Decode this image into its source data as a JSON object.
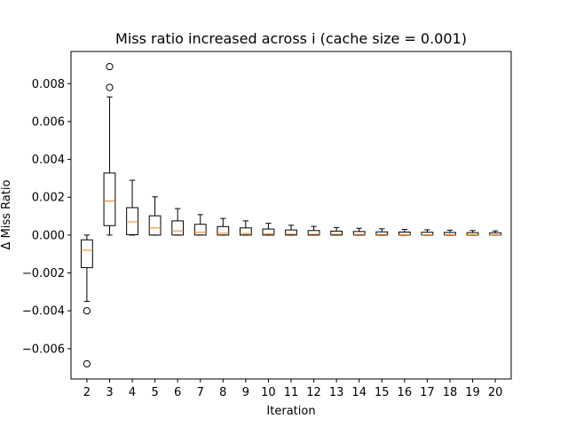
{
  "chart_data": {
    "type": "box",
    "title": "Miss ratio increased across i (cache size = 0.001)",
    "xlabel": "Iteration",
    "ylabel": "Δ Miss Ratio",
    "ylim": [
      -0.0076,
      0.0097
    ],
    "yticks": [
      -0.006,
      -0.004,
      -0.002,
      0.0,
      0.002,
      0.004,
      0.006,
      0.008
    ],
    "ytick_labels": [
      "−0.006",
      "−0.004",
      "−0.002",
      "0.000",
      "0.002",
      "0.004",
      "0.006",
      "0.008"
    ],
    "grid": false,
    "colors": {
      "box": "#000000",
      "median": "#ff7f0e",
      "outlier": "#000000"
    },
    "boxes": [
      {
        "label": "2",
        "whislo": -0.0035,
        "q1": -0.00172,
        "med": -0.0008,
        "q3": -0.00025,
        "whishi": 0.0,
        "fliers": [
          -0.004,
          -0.0068
        ]
      },
      {
        "label": "3",
        "whislo": 0.0,
        "q1": 0.0005,
        "med": 0.0018,
        "q3": 0.00328,
        "whishi": 0.0073,
        "fliers": [
          0.0078,
          0.0089
        ]
      },
      {
        "label": "4",
        "whislo": 0.0,
        "q1": 2e-05,
        "med": 0.0007,
        "q3": 0.00145,
        "whishi": 0.0029,
        "fliers": []
      },
      {
        "label": "5",
        "whislo": 0.0,
        "q1": 0.0,
        "med": 0.00038,
        "q3": 0.00102,
        "whishi": 0.00202,
        "fliers": []
      },
      {
        "label": "6",
        "whislo": 0.0,
        "q1": 0.0,
        "med": 0.00022,
        "q3": 0.00075,
        "whishi": 0.0014,
        "fliers": []
      },
      {
        "label": "7",
        "whislo": 0.0,
        "q1": 0.0,
        "med": 0.00015,
        "q3": 0.00057,
        "whishi": 0.00108,
        "fliers": []
      },
      {
        "label": "8",
        "whislo": 0.0,
        "q1": 0.0,
        "med": 0.0001,
        "q3": 0.00045,
        "whishi": 0.00088,
        "fliers": []
      },
      {
        "label": "9",
        "whislo": 0.0,
        "q1": 0.0,
        "med": 8e-05,
        "q3": 0.00038,
        "whishi": 0.00075,
        "fliers": []
      },
      {
        "label": "10",
        "whislo": 0.0,
        "q1": 0.0,
        "med": 6e-05,
        "q3": 0.00032,
        "whishi": 0.00062,
        "fliers": []
      },
      {
        "label": "11",
        "whislo": 0.0,
        "q1": 0.0,
        "med": 5e-05,
        "q3": 0.00027,
        "whishi": 0.00052,
        "fliers": []
      },
      {
        "label": "12",
        "whislo": 0.0,
        "q1": 0.0,
        "med": 4e-05,
        "q3": 0.00024,
        "whishi": 0.00046,
        "fliers": []
      },
      {
        "label": "13",
        "whislo": 0.0,
        "q1": 0.0,
        "med": 4e-05,
        "q3": 0.00021,
        "whishi": 0.0004,
        "fliers": []
      },
      {
        "label": "14",
        "whislo": 0.0,
        "q1": 0.0,
        "med": 3e-05,
        "q3": 0.00019,
        "whishi": 0.00036,
        "fliers": []
      },
      {
        "label": "15",
        "whislo": 0.0,
        "q1": 0.0,
        "med": 3e-05,
        "q3": 0.00017,
        "whishi": 0.00033,
        "fliers": []
      },
      {
        "label": "16",
        "whislo": 0.0,
        "q1": 0.0,
        "med": 2e-05,
        "q3": 0.00016,
        "whishi": 0.0003,
        "fliers": []
      },
      {
        "label": "17",
        "whislo": 0.0,
        "q1": 0.0,
        "med": 2e-05,
        "q3": 0.00015,
        "whishi": 0.00028,
        "fliers": []
      },
      {
        "label": "18",
        "whislo": 0.0,
        "q1": 0.0,
        "med": 2e-05,
        "q3": 0.00014,
        "whishi": 0.00026,
        "fliers": []
      },
      {
        "label": "19",
        "whislo": 0.0,
        "q1": 0.0,
        "med": 2e-05,
        "q3": 0.00013,
        "whishi": 0.00024,
        "fliers": []
      },
      {
        "label": "20",
        "whislo": 0.0,
        "q1": 0.0,
        "med": 1e-05,
        "q3": 0.00012,
        "whishi": 0.00022,
        "fliers": []
      }
    ]
  }
}
